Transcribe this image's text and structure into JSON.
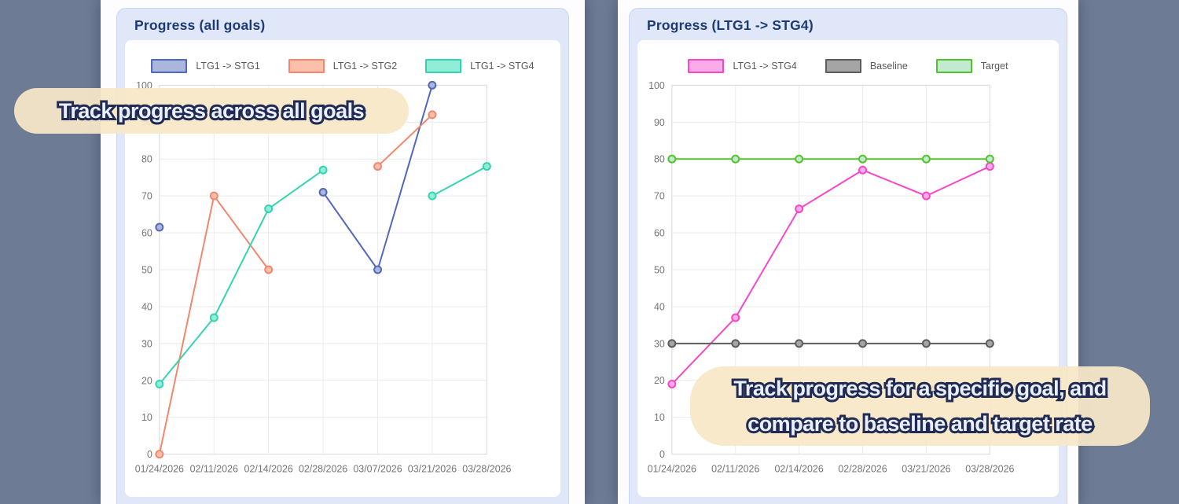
{
  "background_color": "#6d7b95",
  "annotations": {
    "left": {
      "text": "Track progress across all goals"
    },
    "right": {
      "line1": "Track progress for a specific goal, and",
      "line2": "compare to baseline and target rate"
    }
  },
  "colors": {
    "card_background": "#dfe7f9",
    "card_title_text": "#1c3a75",
    "callout_background": "#f7e7c7",
    "callout_text_fill": "#e9effc",
    "callout_text_outline": "#202a52",
    "axis_text": "#757575",
    "gridline": "#e9e9e9"
  },
  "chart_data": [
    {
      "type": "line",
      "title": "Progress (all goals)",
      "xlabel": "",
      "ylabel": "",
      "ylim": [
        0,
        100
      ],
      "ytick_step": 10,
      "grid": true,
      "legend_position": "top",
      "categories": [
        "01/24/2026",
        "02/11/2026",
        "02/14/2026",
        "02/28/2026",
        "03/07/2026",
        "03/21/2026",
        "03/28/2026"
      ],
      "series": [
        {
          "name": "LTG1 -> STG1",
          "color": "#5168bb",
          "fill": "#aab6db",
          "values": [
            61.5,
            null,
            null,
            71,
            50,
            100,
            null
          ]
        },
        {
          "name": "LTG1 -> STG2",
          "color": "#f2876d",
          "fill": "#fbc0ac",
          "values": [
            0,
            70,
            50,
            null,
            78,
            92,
            null
          ]
        },
        {
          "name": "LTG1 -> STG4",
          "color": "#35d3b0",
          "fill": "#90eed7",
          "values": [
            19,
            37,
            66.5,
            77,
            null,
            70,
            78
          ]
        }
      ]
    },
    {
      "type": "line",
      "title": "Progress (LTG1 -> STG4)",
      "xlabel": "",
      "ylabel": "",
      "ylim": [
        0,
        100
      ],
      "ytick_step": 10,
      "grid": true,
      "legend_position": "top",
      "categories": [
        "01/24/2026",
        "02/11/2026",
        "02/14/2026",
        "02/28/2026",
        "03/21/2026",
        "03/28/2026"
      ],
      "series": [
        {
          "name": "LTG1 -> STG4",
          "color": "#f747c7",
          "fill": "#fbace6",
          "values": [
            19,
            37,
            66.5,
            77,
            70,
            78
          ]
        },
        {
          "name": "Baseline",
          "color": "#5d5d5d",
          "fill": "#a5a5a5",
          "values": [
            30,
            30,
            30,
            30,
            30,
            30
          ]
        },
        {
          "name": "Target",
          "color": "#54c32b",
          "fill": "#c2ead0",
          "values": [
            80,
            80,
            80,
            80,
            80,
            80
          ]
        }
      ]
    }
  ]
}
